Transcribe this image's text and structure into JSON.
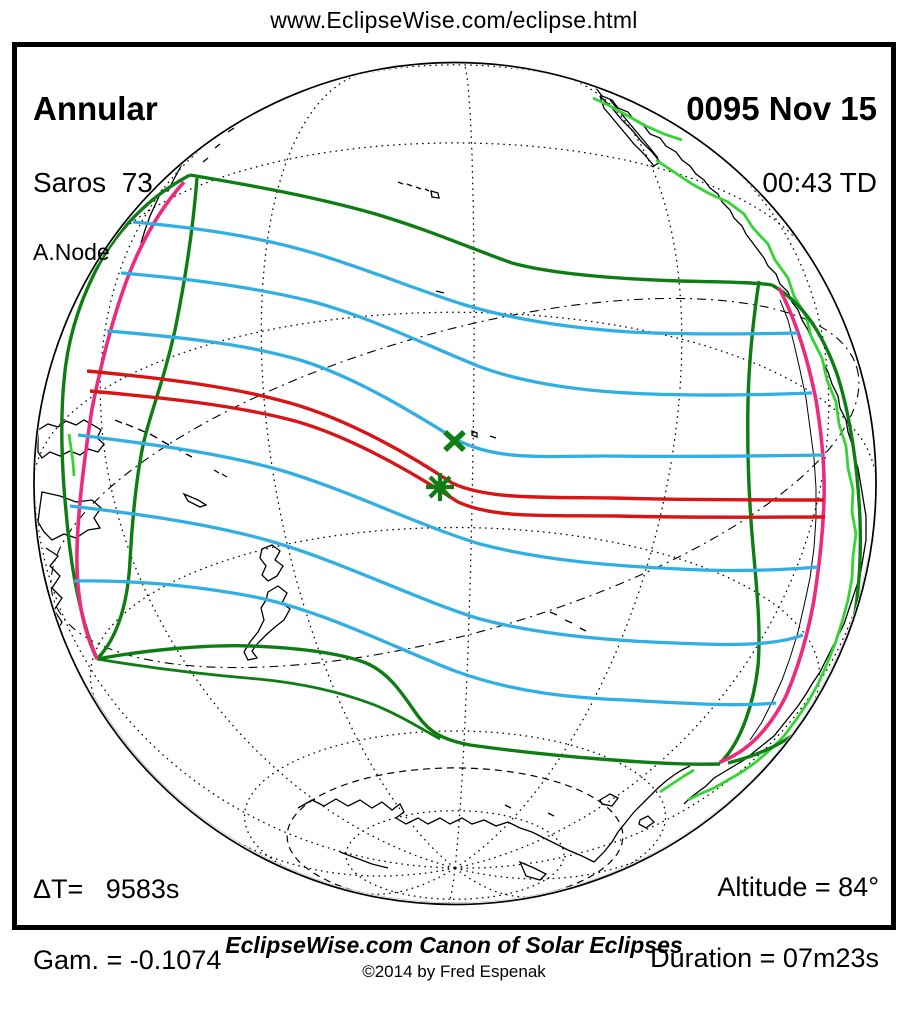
{
  "header": {
    "url": "www.EclipseWise.com/eclipse.html"
  },
  "panel": {
    "type_label": "Annular",
    "saros_label": "Saros  73",
    "node_label": "A.Node",
    "date_label": "0095 Nov 15",
    "time_label": "00:43 TD",
    "delta_t_label": "ΔT=   9583s",
    "gamma_label": "Gam. = -0.1074",
    "altitude_label": "Altitude = 84°",
    "duration_label": "Duration = 07m23s"
  },
  "footer": {
    "title": "EclipseWise.com Canon of Solar Eclipses",
    "copyright": "©2014 by Fred Espenak"
  },
  "colors": {
    "penumbral_limit_green": "#0e7d13",
    "sunrise_sunset_coast_green": "#35d435",
    "magnitude_blue": "#2fafe4",
    "central_path_red": "#d81414",
    "rise_set_limit_magenta": "#ee2a7c",
    "night_limb_gray": "#b9b9b9",
    "land_and_graticule_ink": "#000000"
  },
  "markers": {
    "greatest_eclipse": {
      "symbol": "asterisk",
      "color": "#0e7d13"
    },
    "subsolar_point": {
      "symbol": "x",
      "color": "#0e7d13"
    }
  }
}
